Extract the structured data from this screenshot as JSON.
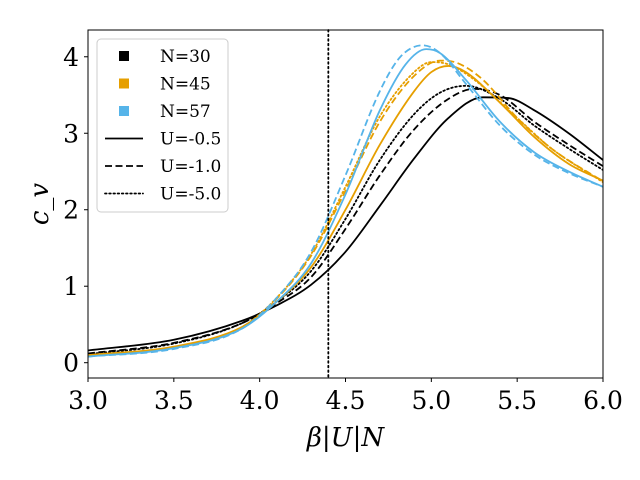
{
  "chart_data": {
    "type": "line",
    "title": "",
    "xlabel": "β|U|N",
    "ylabel": "c_v",
    "xlim": [
      3.0,
      6.0
    ],
    "ylim": [
      -0.2,
      4.35
    ],
    "xticks": [
      3.0,
      3.5,
      4.0,
      4.5,
      5.0,
      5.5,
      6.0
    ],
    "xtick_labels": [
      "3.0",
      "3.5",
      "4.0",
      "4.5",
      "5.0",
      "5.5",
      "6.0"
    ],
    "yticks": [
      0,
      1,
      2,
      3,
      4
    ],
    "ytick_labels": [
      "0",
      "1",
      "2",
      "3",
      "4"
    ],
    "grid": false,
    "legend_position": "top-left",
    "vertical_reference_line": {
      "x": 4.4,
      "style": "dotted",
      "color": "#000000"
    },
    "legend": [
      {
        "label": "N=30",
        "kind": "color",
        "color": "#000000"
      },
      {
        "label": "N=45",
        "kind": "color",
        "color": "#E69F00"
      },
      {
        "label": "N=57",
        "kind": "color",
        "color": "#56B4E9"
      },
      {
        "label": "U=-0.5",
        "kind": "style",
        "style": "solid"
      },
      {
        "label": "U=-1.0",
        "kind": "style",
        "style": "dashed"
      },
      {
        "label": "U=-5.0",
        "kind": "style",
        "style": "dotted"
      }
    ],
    "series": [
      {
        "name": "N=30, U=-0.5",
        "color": "#000000",
        "style": "solid",
        "x": [
          3.0,
          3.5,
          3.9,
          4.1,
          4.3,
          4.5,
          4.7,
          4.9,
          5.1,
          5.3,
          5.45,
          5.6,
          5.8,
          6.0
        ],
        "y": [
          0.16,
          0.3,
          0.55,
          0.75,
          1.02,
          1.45,
          2.05,
          2.67,
          3.2,
          3.47,
          3.46,
          3.3,
          3.0,
          2.65
        ]
      },
      {
        "name": "N=30, U=-1.0",
        "color": "#000000",
        "style": "dashed",
        "x": [
          3.0,
          3.5,
          3.9,
          4.1,
          4.3,
          4.5,
          4.7,
          4.9,
          5.1,
          5.25,
          5.4,
          5.6,
          5.8,
          6.0
        ],
        "y": [
          0.12,
          0.26,
          0.52,
          0.78,
          1.12,
          1.75,
          2.45,
          3.05,
          3.45,
          3.58,
          3.5,
          3.15,
          2.85,
          2.57
        ]
      },
      {
        "name": "N=30, U=-5.0",
        "color": "#000000",
        "style": "dotted",
        "x": [
          3.0,
          3.5,
          3.9,
          4.1,
          4.3,
          4.5,
          4.7,
          4.9,
          5.05,
          5.2,
          5.4,
          5.6,
          5.8,
          6.0
        ],
        "y": [
          0.11,
          0.25,
          0.52,
          0.8,
          1.2,
          1.88,
          2.65,
          3.25,
          3.53,
          3.62,
          3.45,
          3.1,
          2.8,
          2.52
        ]
      },
      {
        "name": "N=45, U=-0.5",
        "color": "#E69F00",
        "style": "solid",
        "x": [
          3.0,
          3.5,
          3.9,
          4.1,
          4.3,
          4.5,
          4.7,
          4.9,
          5.0,
          5.1,
          5.2,
          5.4,
          5.6,
          5.8,
          6.0
        ],
        "y": [
          0.1,
          0.21,
          0.47,
          0.8,
          1.25,
          2.0,
          2.85,
          3.55,
          3.8,
          3.88,
          3.8,
          3.4,
          2.95,
          2.6,
          2.38
        ]
      },
      {
        "name": "N=45, U=-1.0",
        "color": "#E69F00",
        "style": "dashed",
        "x": [
          3.0,
          3.5,
          3.9,
          4.1,
          4.3,
          4.5,
          4.7,
          4.9,
          5.05,
          5.15,
          5.3,
          5.5,
          5.7,
          6.0
        ],
        "y": [
          0.09,
          0.2,
          0.47,
          0.84,
          1.4,
          2.25,
          3.15,
          3.75,
          3.95,
          3.92,
          3.7,
          3.2,
          2.8,
          2.37
        ]
      },
      {
        "name": "N=45, U=-5.0",
        "color": "#E69F00",
        "style": "dotted",
        "x": [
          3.0,
          3.5,
          3.9,
          4.1,
          4.3,
          4.5,
          4.7,
          4.9,
          5.0,
          5.1,
          5.25,
          5.5,
          5.7,
          6.0
        ],
        "y": [
          0.09,
          0.2,
          0.47,
          0.85,
          1.42,
          2.3,
          3.22,
          3.8,
          3.93,
          3.9,
          3.7,
          3.2,
          2.8,
          2.36
        ]
      },
      {
        "name": "N=57, U=-0.5",
        "color": "#56B4E9",
        "style": "solid",
        "x": [
          3.0,
          3.5,
          3.9,
          4.1,
          4.3,
          4.5,
          4.7,
          4.85,
          4.97,
          5.05,
          5.2,
          5.4,
          5.6,
          5.8,
          6.0
        ],
        "y": [
          0.08,
          0.19,
          0.45,
          0.8,
          1.3,
          2.2,
          3.3,
          3.9,
          4.1,
          4.05,
          3.7,
          3.15,
          2.75,
          2.5,
          2.3
        ]
      },
      {
        "name": "N=57, U=-1.0",
        "color": "#56B4E9",
        "style": "dashed",
        "x": [
          3.0,
          3.5,
          3.9,
          4.1,
          4.3,
          4.5,
          4.7,
          4.82,
          4.95,
          5.05,
          5.2,
          5.4,
          5.6,
          5.8,
          6.0
        ],
        "y": [
          0.08,
          0.18,
          0.45,
          0.85,
          1.45,
          2.45,
          3.55,
          4.0,
          4.15,
          4.05,
          3.65,
          3.1,
          2.72,
          2.48,
          2.3
        ]
      }
    ]
  }
}
